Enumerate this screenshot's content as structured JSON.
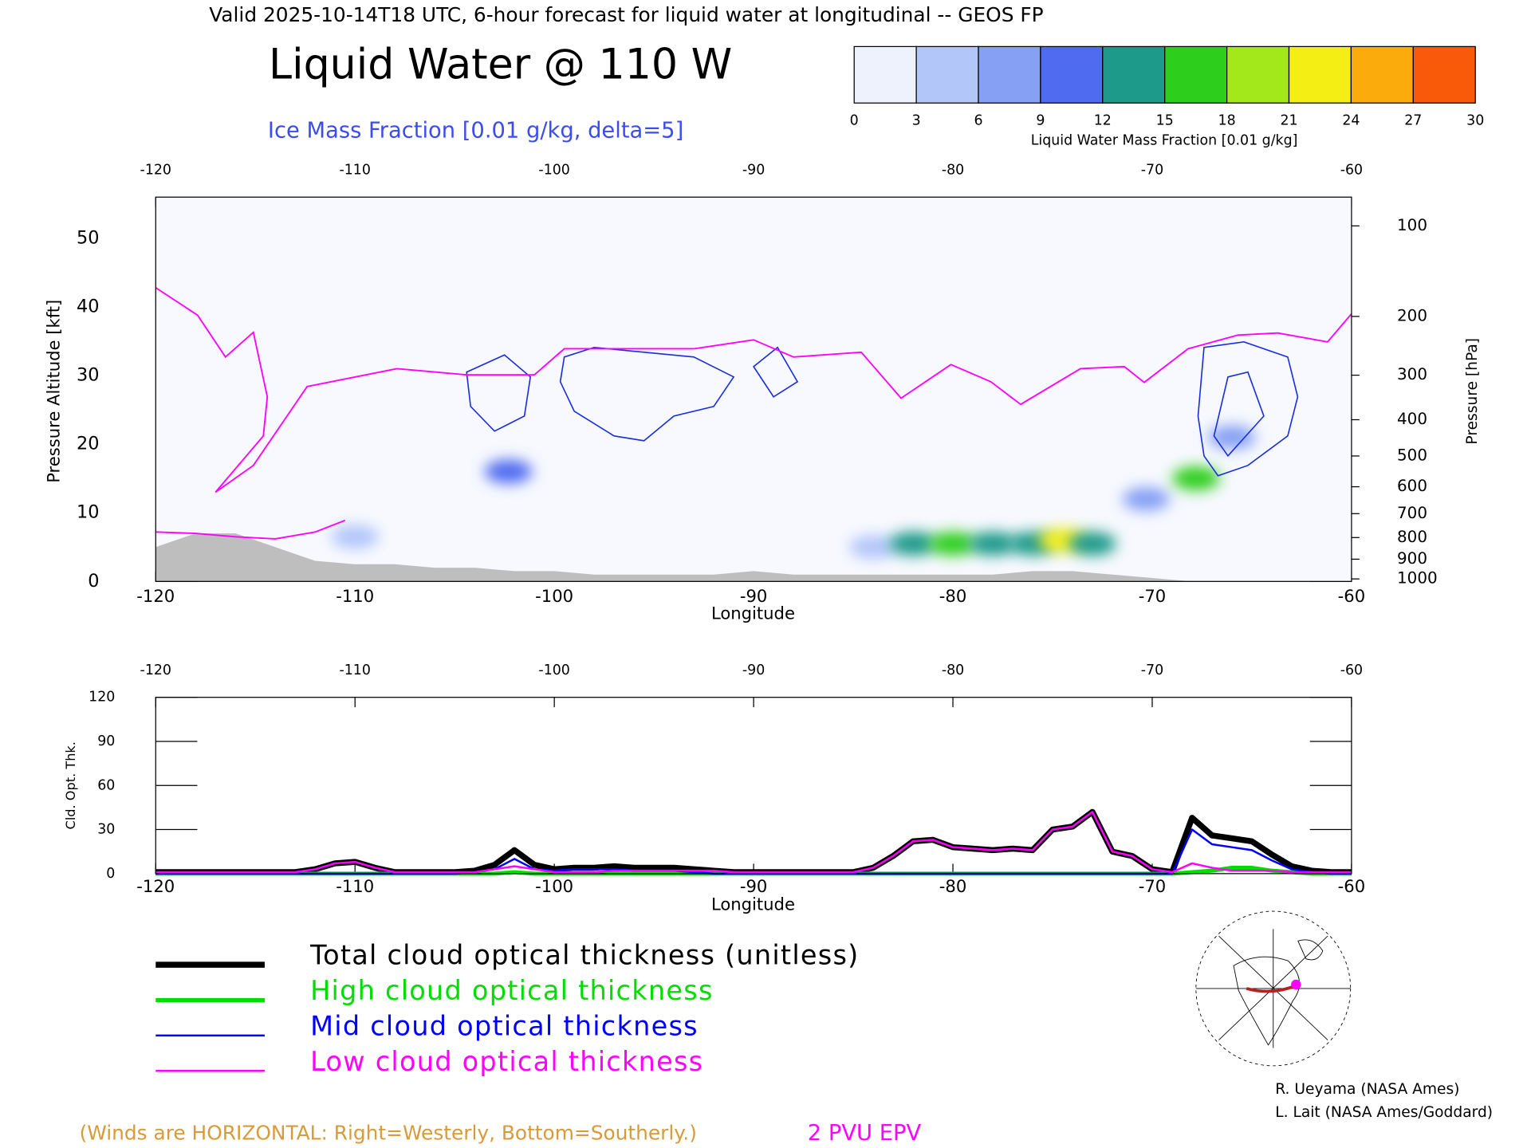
{
  "header": "Valid 2025-10-14T18 UTC, 6-hour forecast for liquid water at longitudinal -- GEOS FP",
  "credits": [
    "R. Ueyama (NASA Ames)",
    "L. Lait (NASA Ames/Goddard)"
  ],
  "chart_data": [
    {
      "type": "cross-section",
      "title": "Liquid Water @ 110 W",
      "subtitle": "Ice Mass Fraction [0.01 g/kg, delta=5]",
      "subtitle_color": "#3b4cf2",
      "colorbar": {
        "ticks": [
          0,
          3,
          6,
          9,
          12,
          15,
          18,
          21,
          24,
          27,
          30
        ],
        "colors": [
          "#eef2fd",
          "#b3c6fa",
          "#86a0f4",
          "#4f6cf0",
          "#1e9a8a",
          "#2ecf1c",
          "#a2e81a",
          "#f5ee14",
          "#fbab0c",
          "#f85a0a"
        ],
        "label": "Liquid Water Mass Fraction [0.01 g/kg]"
      },
      "xlabel": "Longitude",
      "ylabel": "Pressure Altitude [kft]",
      "y2label": "Pressure [hPa]",
      "y2scale": "pressure-altitude",
      "xlim": [
        -120,
        -60
      ],
      "xticks": [
        -120,
        -110,
        -100,
        -90,
        -80,
        -70,
        -60
      ],
      "ylim": [
        0,
        56
      ],
      "yticks": [
        0,
        10,
        20,
        30,
        40,
        50
      ],
      "y2ticks": [
        100,
        200,
        300,
        400,
        500,
        600,
        700,
        800,
        900,
        1000
      ],
      "terrain": {
        "color": "#bebebe",
        "x": [
          -120,
          -118,
          -116,
          -114,
          -112,
          -110,
          -108,
          -106,
          -104,
          -102,
          -100,
          -98,
          -96,
          -94,
          -92,
          -90,
          -88,
          -86,
          -84,
          -82,
          -80,
          -78,
          -76,
          -74,
          -72,
          -70,
          -68,
          -60
        ],
        "values": [
          5,
          7,
          7,
          5,
          3,
          2.5,
          2.5,
          2,
          2,
          1.5,
          1.5,
          1,
          1,
          1,
          1,
          1.5,
          1,
          1,
          1,
          1,
          1,
          1,
          1.5,
          1.5,
          1,
          0.5,
          0,
          0
        ]
      },
      "liquid_water": {
        "x": [
          -102.3,
          -70.3,
          -67.8,
          -66,
          -84,
          -82,
          -80,
          -78,
          -76,
          -74.5,
          -73,
          -110
        ],
        "y": [
          16,
          12,
          15,
          21,
          5,
          5.5,
          5.5,
          5.5,
          5.5,
          6,
          5.5,
          6.5
        ],
        "values": [
          9,
          6,
          16,
          7,
          5,
          12,
          15,
          14,
          12,
          22,
          12,
          3
        ]
      },
      "ice_contours": {
        "color": "#1a2ee0",
        "lines": [
          {
            "x": [
              -104.4,
              -102.5,
              -101.2,
              -101.5,
              -103.0,
              -104.2
            ],
            "y": [
              30.5,
              33.0,
              29.8,
              24.1,
              21.9,
              25.5
            ]
          },
          {
            "x": [
              -99.5,
              -98.0,
              -95.5,
              -93.0,
              -91.0,
              -92.0,
              -94.0,
              -95.5,
              -97.0,
              -99.0,
              -99.7
            ],
            "y": [
              32.7,
              34.1,
              33.4,
              32.7,
              29.8,
              25.5,
              24.1,
              20.5,
              21.2,
              24.8,
              29.1
            ]
          },
          {
            "x": [
              -90.0,
              -88.8,
              -87.8,
              -89.0
            ],
            "y": [
              31.3,
              34.1,
              29.1,
              26.9
            ]
          },
          {
            "x": [
              -67.4,
              -65.4,
              -63.2,
              -62.7,
              -63.2,
              -65.2,
              -66.7,
              -67.4,
              -67.7
            ],
            "y": [
              34.1,
              34.9,
              32.7,
              26.9,
              21.2,
              16.9,
              15.4,
              18.3,
              24.1
            ]
          },
          {
            "x": [
              -66.2,
              -65.2,
              -64.4,
              -66.2,
              -66.9
            ],
            "y": [
              29.8,
              30.5,
              24.1,
              18.3,
              21.2
            ]
          }
        ]
      },
      "series": [
        {
          "name": "2 PVU EPV",
          "color": "#ff00ff",
          "x": [
            -120,
            -117.9,
            -116.5,
            -115.1,
            -114.4,
            -114.6,
            -117.0,
            -115.1,
            -112.4,
            -107.9,
            -104.4,
            -101.0,
            -99.5,
            -93.0,
            -90.0,
            -88.0,
            -84.6,
            -82.6,
            -80.1,
            -78.1,
            -76.6,
            -73.6,
            -71.4,
            -70.4,
            -68.2,
            -65.7,
            -63.7,
            -61.2,
            -60,
            null,
            -120,
            -118,
            -116,
            -114,
            -112,
            -110.5
          ],
          "values": [
            42.8,
            38.8,
            32.7,
            36.3,
            26.9,
            21.2,
            13.0,
            16.9,
            28.4,
            31.0,
            30.1,
            30.1,
            33.9,
            33.9,
            35.2,
            32.7,
            33.4,
            26.7,
            31.6,
            29.1,
            25.8,
            31.0,
            31.3,
            29.0,
            33.9,
            35.9,
            36.2,
            34.9,
            39.0,
            null,
            7.2,
            7,
            6.5,
            6.2,
            7.2,
            8.9
          ]
        }
      ],
      "annotations": [
        {
          "text": "(Winds are HORIZONTAL: Right=Westerly, Bottom=Southerly.)",
          "color": "#d99a3a"
        }
      ]
    },
    {
      "type": "line",
      "ylabel": "Cld. Opt. Thk.",
      "xlabel": "Longitude",
      "xlim": [
        -120,
        -60
      ],
      "xticks": [
        -120,
        -110,
        -100,
        -90,
        -80,
        -70,
        -60
      ],
      "ylim": [
        0,
        120
      ],
      "yticks": [
        0,
        30,
        60,
        90,
        120
      ],
      "x": [
        -120,
        -119,
        -118,
        -117,
        -116,
        -115,
        -114,
        -113,
        -112,
        -111,
        -110,
        -109,
        -108,
        -107,
        -106,
        -105,
        -104,
        -103,
        -102,
        -101,
        -100,
        -99,
        -98,
        -97,
        -96,
        -95,
        -94,
        -93,
        -92,
        -91,
        -90,
        -89,
        -88,
        -87,
        -86,
        -85,
        -84,
        -83,
        -82,
        -81,
        -80,
        -79,
        -78,
        -77,
        -76,
        -75,
        -74,
        -73,
        -72,
        -71,
        -70,
        -69,
        -68,
        -67,
        -66,
        -65,
        -64,
        -63,
        -62,
        -61,
        -60
      ],
      "series": [
        {
          "name": "Total cloud optical thickness (unitless)",
          "color": "#000000",
          "width": 6,
          "values": [
            1,
            1,
            1,
            1,
            1,
            1,
            1,
            1,
            3,
            7,
            8,
            4,
            1,
            1,
            1,
            1,
            2,
            6,
            16,
            6,
            3,
            4,
            4,
            5,
            4,
            4,
            4,
            3,
            2,
            1,
            1,
            1,
            1,
            1,
            1,
            1,
            4,
            12,
            22,
            23,
            18,
            17,
            16,
            17,
            16,
            30,
            32,
            42,
            15,
            12,
            3,
            1,
            38,
            26,
            24,
            22,
            13,
            5,
            2,
            1,
            1
          ]
        },
        {
          "name": "High cloud optical thickness",
          "color": "#00dd00",
          "width": 4,
          "values": [
            0,
            0,
            0,
            0,
            0,
            0,
            0,
            0,
            0,
            0,
            0,
            0,
            0,
            0,
            0,
            0,
            0,
            0,
            1,
            0,
            0,
            0,
            0,
            0,
            0,
            0,
            0,
            0,
            0,
            0,
            0,
            0,
            0,
            0,
            0,
            0,
            0,
            0,
            0,
            0,
            0,
            0,
            0,
            0,
            0,
            0,
            0,
            0,
            0,
            0,
            0,
            0,
            1,
            2,
            4,
            4,
            2,
            1,
            0,
            0,
            0
          ]
        },
        {
          "name": "Mid cloud optical thickness",
          "color": "#0000ff",
          "width": 2,
          "values": [
            0,
            0,
            0,
            0,
            0,
            0,
            0,
            0,
            0,
            0,
            0,
            0,
            0,
            0,
            0,
            0,
            1,
            3,
            10,
            3,
            2,
            3,
            3,
            3,
            2,
            2,
            2,
            1,
            0,
            0,
            0,
            0,
            0,
            0,
            0,
            0,
            0,
            0,
            0,
            0,
            0,
            0,
            0,
            0,
            0,
            0,
            0,
            0,
            0,
            0,
            0,
            0,
            30,
            20,
            18,
            16,
            9,
            3,
            1,
            0,
            0
          ]
        },
        {
          "name": "Low cloud optical thickness",
          "color": "#ff00ff",
          "width": 2,
          "values": [
            1,
            1,
            1,
            1,
            1,
            1,
            1,
            1,
            3,
            7,
            8,
            4,
            1,
            1,
            1,
            1,
            1,
            3,
            5,
            3,
            1,
            1,
            1,
            2,
            2,
            2,
            2,
            2,
            2,
            1,
            1,
            1,
            1,
            1,
            1,
            1,
            4,
            12,
            22,
            23,
            18,
            17,
            16,
            17,
            16,
            30,
            32,
            42,
            15,
            12,
            3,
            1,
            7,
            4,
            2,
            2,
            2,
            1,
            1,
            1,
            1
          ]
        }
      ]
    }
  ]
}
